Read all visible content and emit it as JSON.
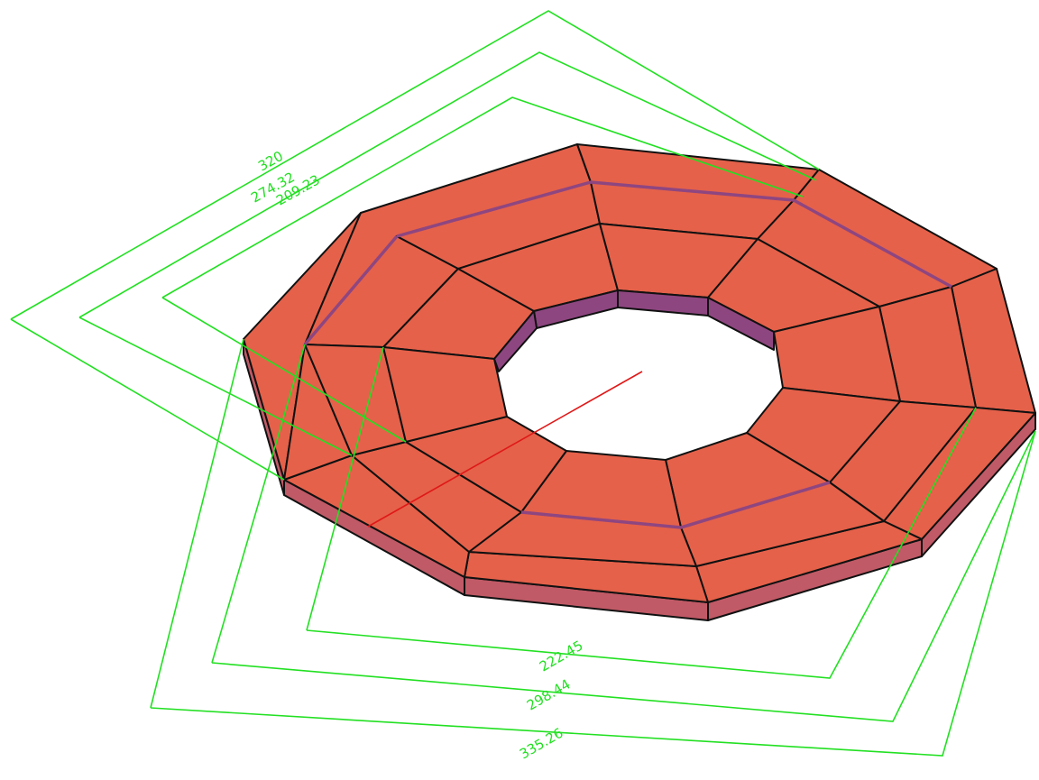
{
  "dimensions": {
    "upper": [
      {
        "label": "320"
      },
      {
        "label": "274.32"
      },
      {
        "label": "209.23"
      }
    ],
    "lower": [
      {
        "label": "222.45"
      },
      {
        "label": "298.44"
      },
      {
        "label": "335.26"
      }
    ]
  },
  "colors": {
    "top_face": "#e5614a",
    "inner_wall": "#8e4680",
    "outer_wall": "#c05a66",
    "groove": "#8e4680",
    "dimension": "#22e022",
    "axis": "#e01818"
  }
}
